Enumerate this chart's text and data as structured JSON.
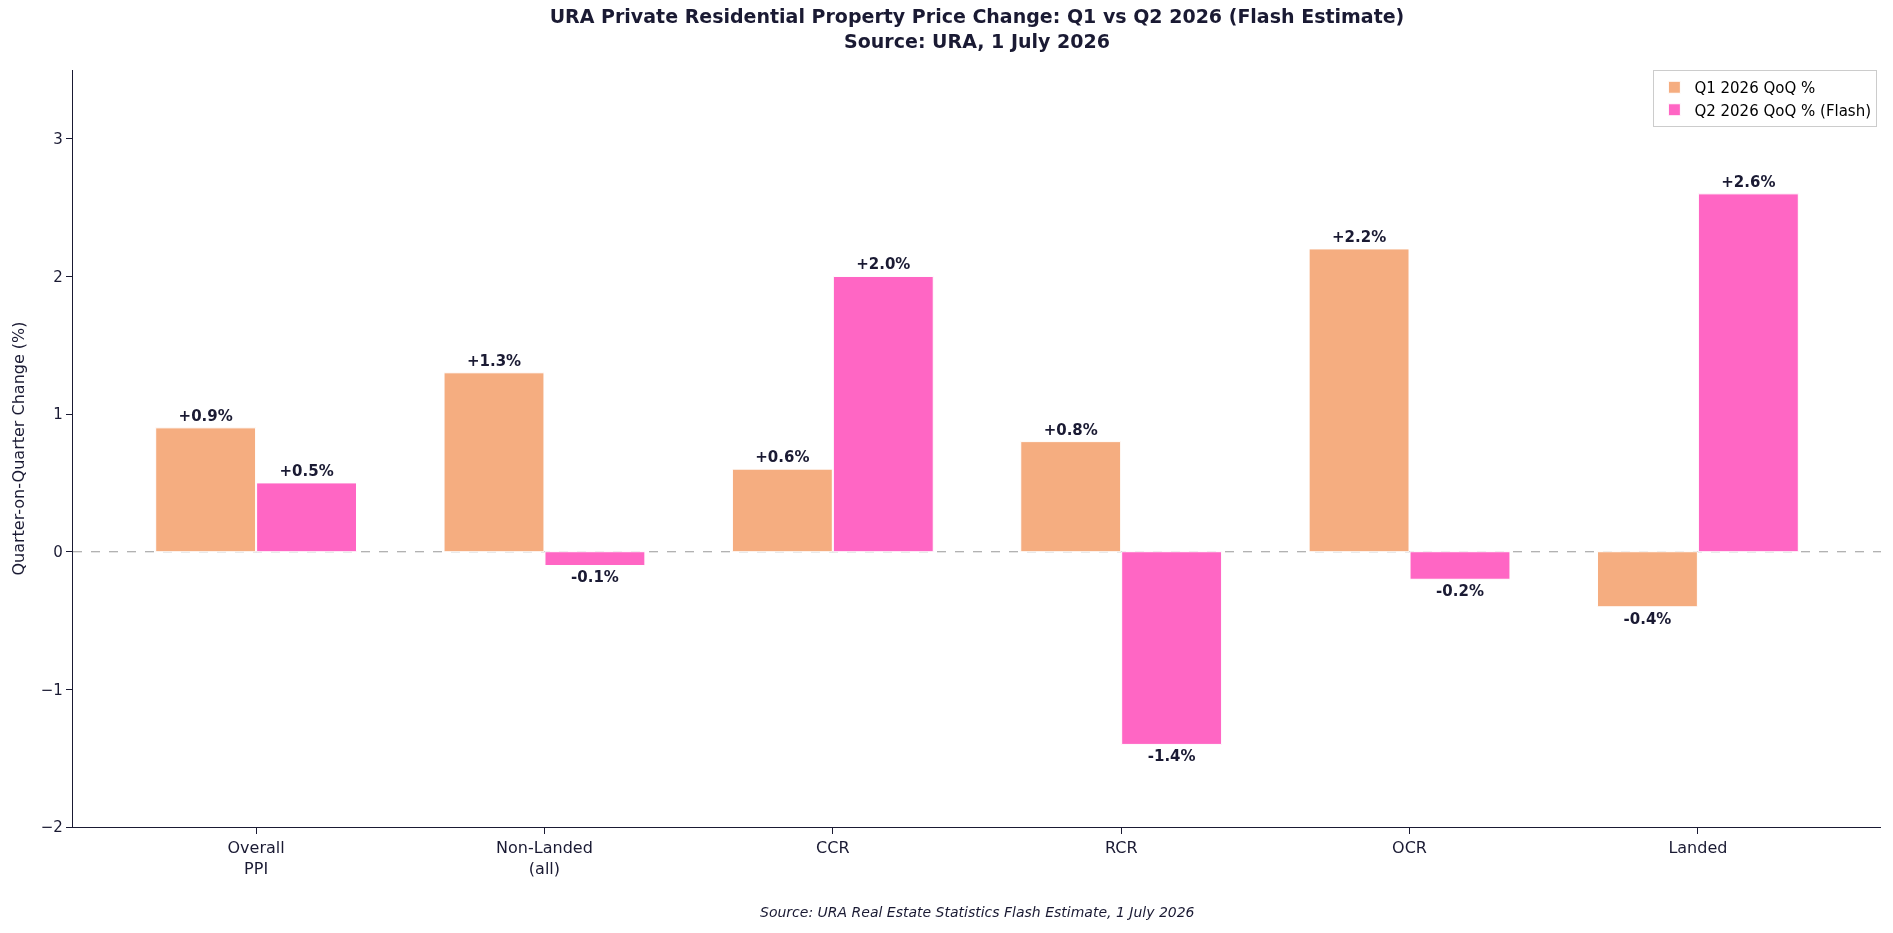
{
  "chart_data": {
    "type": "bar",
    "title": "URA Private Residential Property Price Change: Q1 vs Q2 2026 (Flash Estimate)",
    "subtitle": "Source: URA, 1 July 2026",
    "ylabel": "Quarter-on-Quarter Change (%)",
    "categories": [
      "Overall\nPPI",
      "Non-Landed\n(all)",
      "CCR",
      "RCR",
      "OCR",
      "Landed"
    ],
    "series": [
      {
        "name": "Q1 2026 QoQ %",
        "color": "#f5ad80",
        "values": [
          0.9,
          1.3,
          0.6,
          0.8,
          2.2,
          -0.4
        ],
        "value_labels": [
          "+0.9%",
          "+1.3%",
          "+0.6%",
          "+0.8%",
          "+2.2%",
          "-0.4%"
        ]
      },
      {
        "name": "Q2 2026 QoQ % (Flash)",
        "color": "#ff66c4",
        "values": [
          0.5,
          -0.1,
          2.0,
          -1.4,
          -0.2,
          2.6
        ],
        "value_labels": [
          "+0.5%",
          "-0.1%",
          "+2.0%",
          "-1.4%",
          "-0.2%",
          "+2.6%"
        ]
      }
    ],
    "ylim": [
      -2,
      3.5
    ],
    "yticks": [
      -2,
      -1,
      0,
      1,
      2,
      3
    ],
    "grid": false,
    "legend": "top right",
    "ref_lines": [
      {
        "axis": "y",
        "value": 0,
        "color": "#999999",
        "line_style": "dashed"
      }
    ],
    "annotations": [
      "Source: URA Real Estate Statistics Flash Estimate, 1 July 2026"
    ]
  }
}
